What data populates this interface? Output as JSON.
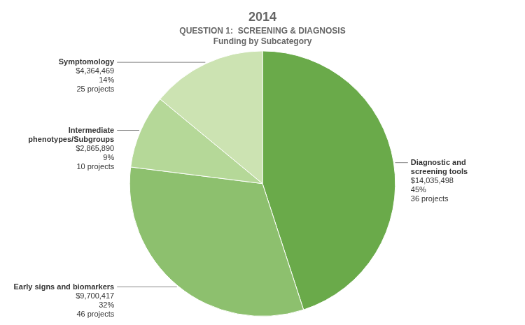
{
  "chart_data": {
    "type": "pie",
    "title": "2014",
    "subtitle": [
      "QUESTION 1:  SCREENING & DIAGNOSIS",
      "Funding by Subcategory"
    ],
    "categories": [
      "Diagnostic and\nscreening tools",
      "Early signs and biomarkers",
      "Intermediate\nphenotypes/Subgroups",
      "Symptomology"
    ],
    "values": [
      45,
      32,
      9,
      14
    ],
    "value_labels": [
      "45%",
      "32%",
      "9%",
      "14%"
    ],
    "data_labels": true,
    "colors": [
      "#6aaa4a",
      "#8dc06e",
      "#b5d898",
      "#cce3b2"
    ],
    "annotations": [
      {
        "amount": "$14,035,498",
        "projects": "36 projects"
      },
      {
        "amount": "$9,700,417",
        "projects": "46 projects"
      },
      {
        "amount": "$2,865,890",
        "projects": "10 projects"
      },
      {
        "amount": "$4,364,469",
        "projects": "25 projects"
      }
    ],
    "legend": false
  }
}
